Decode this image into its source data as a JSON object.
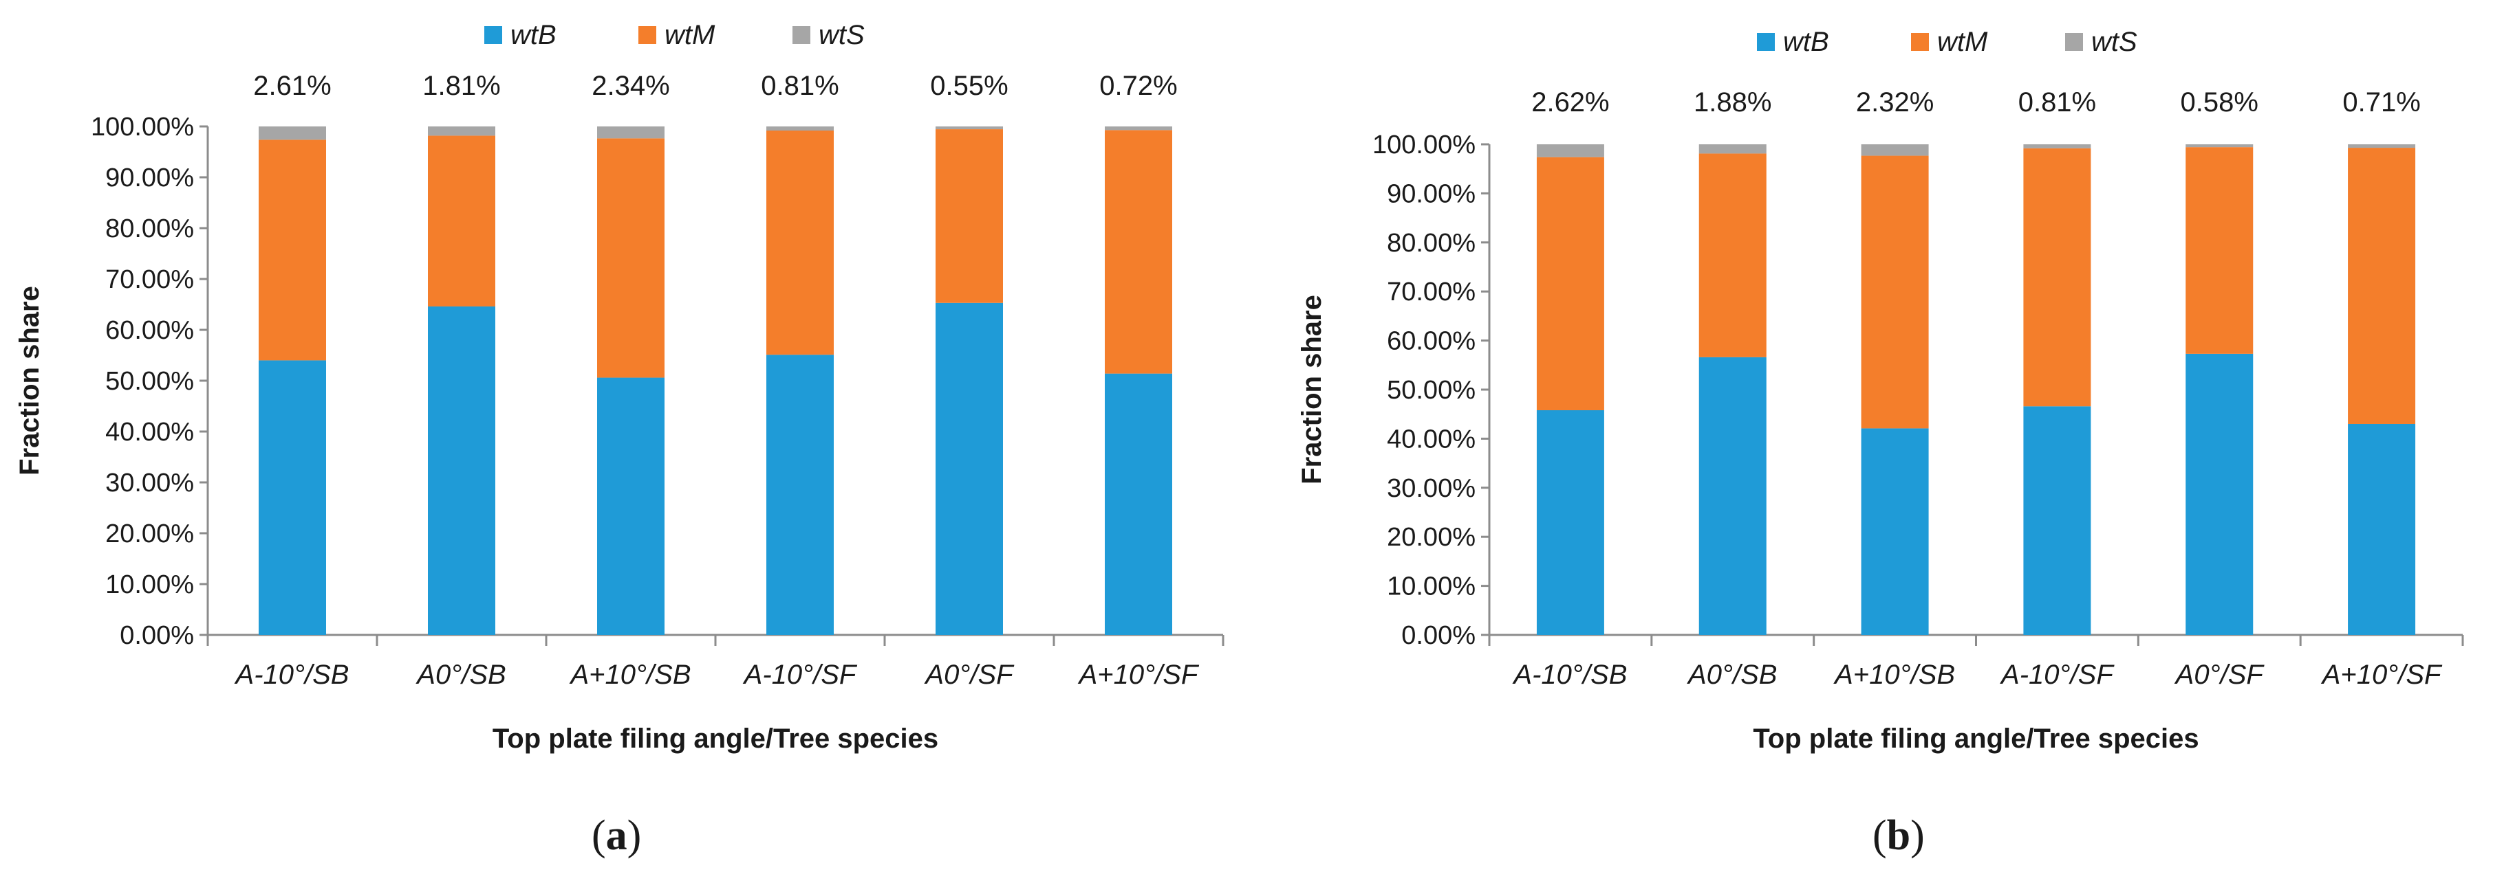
{
  "colors": {
    "wtB": "#1f9bd7",
    "wtM": "#f47e2b",
    "wtS": "#a6a6a6",
    "axis": "#8c8c8c",
    "text": "#1a1a1a"
  },
  "chart_data": [
    {
      "type": "bar",
      "stacked": true,
      "panel": "a",
      "panel_label": "a",
      "xlabel": "Top plate filing angle/Tree species",
      "ylabel": "Fraction share",
      "ylim": [
        0,
        100
      ],
      "y_ticks": [
        0,
        10,
        20,
        30,
        40,
        50,
        60,
        70,
        80,
        90,
        100
      ],
      "y_tick_labels": [
        "0.00%",
        "10.00%",
        "20.00%",
        "30.00%",
        "40.00%",
        "50.00%",
        "60.00%",
        "70.00%",
        "80.00%",
        "90.00%",
        "100.00%"
      ],
      "legend_position": "top-center",
      "categories": [
        "A-10°/SB",
        "A0°/SB",
        "A+10°/SB",
        "A-10°/SF",
        "A0°/SF",
        "A+10°/SF"
      ],
      "series": [
        {
          "name": "wtB",
          "values": [
            54.0,
            64.6,
            50.6,
            55.1,
            65.3,
            51.4
          ]
        },
        {
          "name": "wtM",
          "values": [
            43.39,
            33.59,
            47.06,
            44.09,
            34.15,
            47.88
          ]
        },
        {
          "name": "wtS",
          "values": [
            2.61,
            1.81,
            2.34,
            0.81,
            0.55,
            0.72
          ]
        }
      ],
      "annotations": [
        "2.61%",
        "1.81%",
        "2.34%",
        "0.81%",
        "0.55%",
        "0.72%"
      ]
    },
    {
      "type": "bar",
      "stacked": true,
      "panel": "b",
      "panel_label": "b",
      "xlabel": "Top plate filing angle/Tree species",
      "ylabel": "Fraction share",
      "ylim": [
        0,
        100
      ],
      "y_ticks": [
        0,
        10,
        20,
        30,
        40,
        50,
        60,
        70,
        80,
        90,
        100
      ],
      "y_tick_labels": [
        "0.00%",
        "10.00%",
        "20.00%",
        "30.00%",
        "40.00%",
        "50.00%",
        "60.00%",
        "70.00%",
        "80.00%",
        "90.00%",
        "100.00%"
      ],
      "legend_position": "top-center",
      "categories": [
        "A-10°/SB",
        "A0°/SB",
        "A+10°/SB",
        "A-10°/SF",
        "A0°/SF",
        "A+10°/SF"
      ],
      "series": [
        {
          "name": "wtB",
          "values": [
            45.8,
            56.6,
            42.1,
            46.6,
            57.3,
            43.0
          ]
        },
        {
          "name": "wtM",
          "values": [
            51.58,
            41.52,
            55.58,
            52.59,
            42.12,
            56.29
          ]
        },
        {
          "name": "wtS",
          "values": [
            2.62,
            1.88,
            2.32,
            0.81,
            0.58,
            0.71
          ]
        }
      ],
      "annotations": [
        "2.62%",
        "1.88%",
        "2.32%",
        "0.81%",
        "0.58%",
        "0.71%"
      ]
    }
  ]
}
